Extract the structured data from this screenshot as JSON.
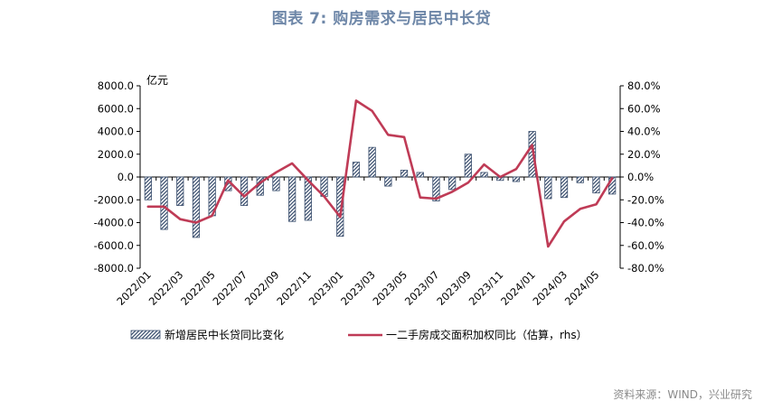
{
  "figure": {
    "title": "图表 7:  购房需求与居民中长贷",
    "source": "资料来源：WIND，兴业研究",
    "colors": {
      "bar": "#3d5170",
      "line": "#bf3b56",
      "title": "#6e87a8"
    }
  },
  "chart_data": {
    "type": "bar+line",
    "left_axis": {
      "unit_label": "亿元",
      "ylim": [
        -8000,
        8000
      ],
      "ticks": [
        "8000.0",
        "6000.0",
        "4000.0",
        "2000.0",
        "0.0",
        "-2000.0",
        "-4000.0",
        "-6000.0",
        "-8000.0"
      ]
    },
    "right_axis": {
      "ylim": [
        -80,
        80
      ],
      "ticks": [
        "80.0%",
        "60.0%",
        "40.0%",
        "20.0%",
        "0.0%",
        "-20.0%",
        "-40.0%",
        "-60.0%",
        "-80.0%"
      ]
    },
    "x_tick_labels": [
      "2022/01",
      "2022/03",
      "2022/05",
      "2022/07",
      "2022/09",
      "2022/11",
      "2023/01",
      "2023/03",
      "2023/05",
      "2023/07",
      "2023/09",
      "2023/11",
      "2024/01",
      "2024/03",
      "2024/05"
    ],
    "categories": [
      "2022/01",
      "2022/02",
      "2022/03",
      "2022/04",
      "2022/05",
      "2022/06",
      "2022/07",
      "2022/08",
      "2022/09",
      "2022/10",
      "2022/11",
      "2022/12",
      "2023/01",
      "2023/02",
      "2023/03",
      "2023/04",
      "2023/05",
      "2023/06",
      "2023/07",
      "2023/08",
      "2023/09",
      "2023/10",
      "2023/11",
      "2023/12",
      "2024/01",
      "2024/02",
      "2024/03",
      "2024/04",
      "2024/05",
      "2024/06"
    ],
    "series": [
      {
        "name": "新增居民中长贷同比变化",
        "axis": "left",
        "type": "bar",
        "values": [
          -2000,
          -4600,
          -2500,
          -5300,
          -3400,
          -1200,
          -2500,
          -1600,
          -1200,
          -3900,
          -3800,
          -1700,
          -5200,
          1300,
          2600,
          -800,
          600,
          400,
          -2100,
          -1100,
          2000,
          400,
          -300,
          -400,
          4000,
          -1900,
          -1800,
          -500,
          -1400,
          -1500
        ]
      },
      {
        "name": "一二手房成交面积加权同比（估算，rhs）",
        "axis": "right",
        "type": "line",
        "values": [
          -26,
          -26,
          -37,
          -40,
          -34,
          -3,
          -17,
          -5,
          4,
          12,
          -3,
          -17,
          -35,
          67,
          58,
          37,
          35,
          -18,
          -19,
          -13,
          -5,
          11,
          0,
          7,
          28,
          -61,
          -39,
          -28,
          -24,
          -1
        ]
      }
    ],
    "legend": "bottom",
    "grid": false
  }
}
